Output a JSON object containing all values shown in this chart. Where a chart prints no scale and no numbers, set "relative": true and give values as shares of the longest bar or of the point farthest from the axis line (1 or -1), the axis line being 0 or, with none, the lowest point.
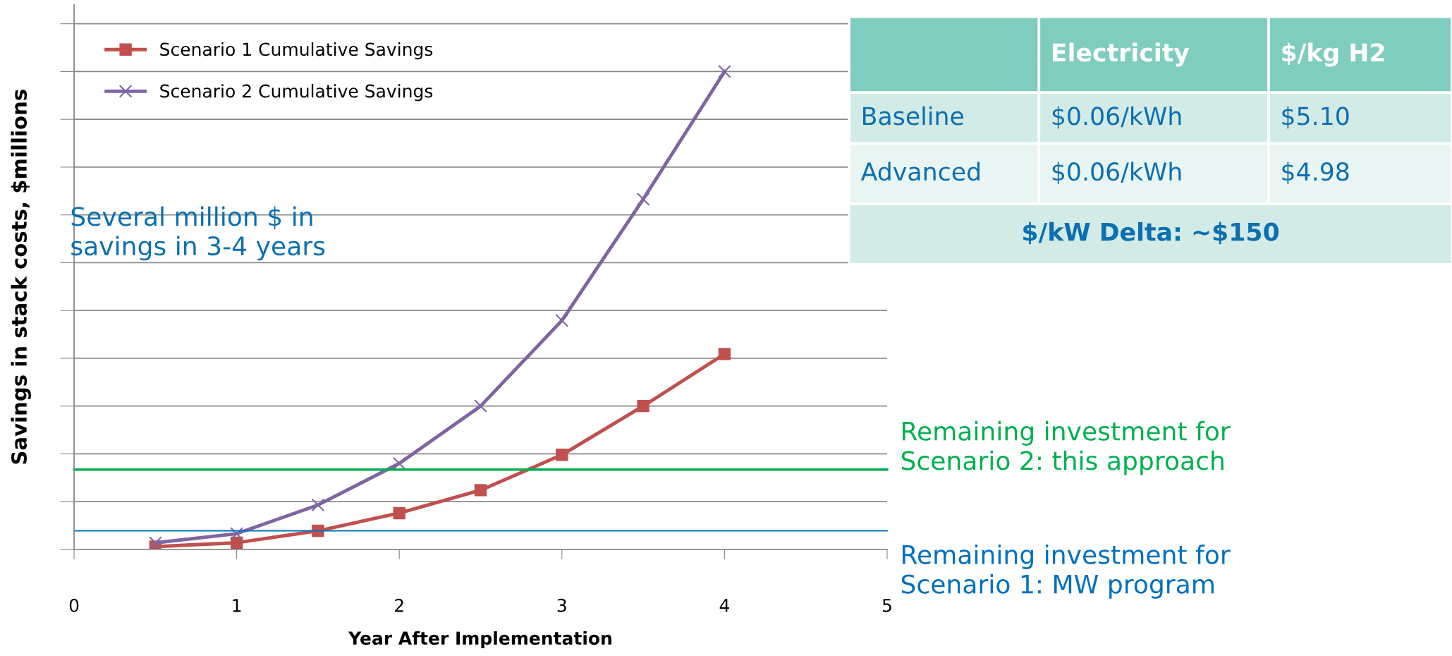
{
  "chart_data": [
    {
      "type": "line",
      "relative": true,
      "xlabel": "Year After Implementation",
      "ylabel": "Savings in stack costs, $millions",
      "xlim": [
        0,
        5
      ],
      "xticks": [
        0,
        1,
        2,
        3,
        4,
        5
      ],
      "x": [
        0.5,
        1,
        1.5,
        2,
        2.5,
        3,
        3.5,
        4
      ],
      "grid": "y",
      "legend": "top left",
      "series": [
        {
          "name": "Scenario 1 Cumulative Savings",
          "color": "#c0504d",
          "marker": "square",
          "values": [
            0.006,
            0.014,
            0.039,
            0.076,
            0.124,
            0.198,
            0.3,
            0.409
          ]
        },
        {
          "name": "Scenario 2 Cumulative Savings",
          "color": "#8064a2",
          "marker": "cross",
          "values": [
            0.014,
            0.033,
            0.093,
            0.18,
            0.3,
            0.479,
            0.733,
            1
          ]
        }
      ],
      "ref_lines": [
        {
          "axis": "y",
          "value": 0.167,
          "label": "Remaining investment for\nScenario 2: this approach",
          "color": "#00b050"
        },
        {
          "axis": "y",
          "value": 0.039,
          "label": "Remaining investment for\nScenario 1: MW program",
          "color": "#0070c0"
        }
      ],
      "annotations": [
        "Several million $ in\nsavings in 3-4 years"
      ]
    },
    {
      "type": "other",
      "annotations": [
        "Electricity",
        "$/kg H2",
        "Baseline",
        "$0.06/kWh",
        "$5.10",
        "Advanced",
        "$0.06/kWh",
        "$4.98",
        "$/kW Delta: ~$150"
      ]
    }
  ]
}
